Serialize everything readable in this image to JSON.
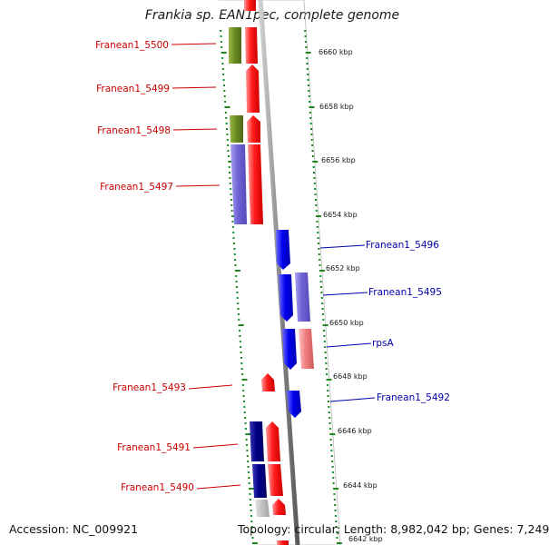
{
  "title": "Frankia sp. EAN1pec, complete genome",
  "footer": {
    "accession": "Accession: NC_009921",
    "topology": "Topology: circular; Length: 8,982,042 bp; Genes: 7,249"
  },
  "colors": {
    "left_label": "#cc0000",
    "right_label": "#0000aa",
    "ticks": "#1a8a1a",
    "axis": "#8c8c8c"
  },
  "scale_labels": [
    "6660 kbp",
    "6658 kbp",
    "6656 kbp",
    "6654 kbp",
    "6652 kbp",
    "6650 kbp",
    "6648 kbp",
    "6646 kbp",
    "6644 kbp",
    "6642 kbp"
  ],
  "genes": [
    {
      "label": "Franean1_5500",
      "side": "left"
    },
    {
      "label": "Franean1_5499",
      "side": "left"
    },
    {
      "label": "Franean1_5498",
      "side": "left"
    },
    {
      "label": "Franean1_5497",
      "side": "left"
    },
    {
      "label": "Franean1_5496",
      "side": "right"
    },
    {
      "label": "Franean1_5495",
      "side": "right"
    },
    {
      "label": "rpsA",
      "side": "right"
    },
    {
      "label": "Franean1_5493",
      "side": "left"
    },
    {
      "label": "Franean1_5492",
      "side": "right"
    },
    {
      "label": "Franean1_5491",
      "side": "left"
    },
    {
      "label": "Franean1_5490",
      "side": "left"
    }
  ]
}
